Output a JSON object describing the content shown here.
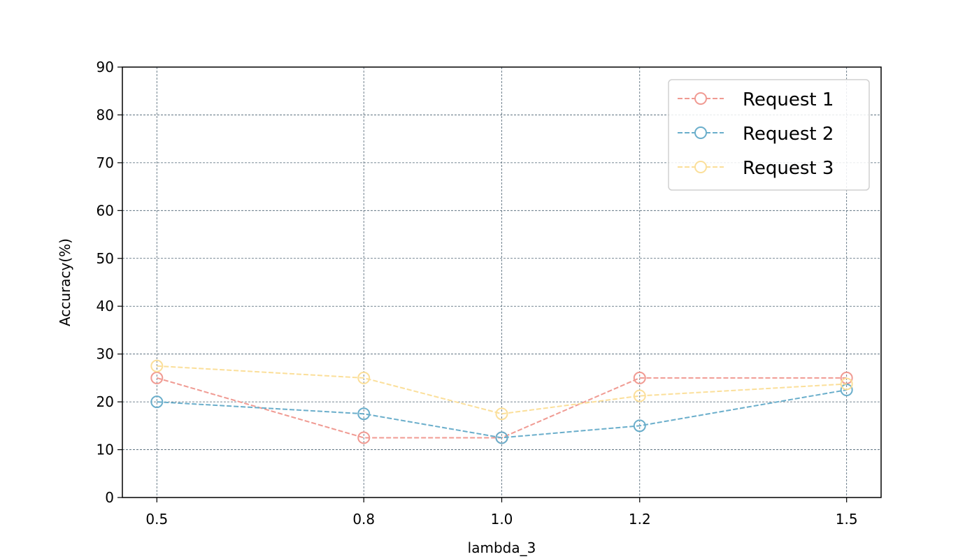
{
  "chart_data": {
    "type": "line",
    "xlabel": "lambda_3",
    "ylabel": "Accuracy(%)",
    "x": [
      0.5,
      0.8,
      1.0,
      1.2,
      1.5
    ],
    "xticks": [
      "0.5",
      "0.8",
      "1.0",
      "1.2",
      "1.5"
    ],
    "xlim": [
      0.45,
      1.55
    ],
    "ylim": [
      0,
      90
    ],
    "yticks": [
      "0",
      "10",
      "20",
      "30",
      "40",
      "50",
      "60",
      "70",
      "80",
      "90"
    ],
    "grid": true,
    "legend_position": "top-right",
    "series": [
      {
        "name": "Request 1",
        "color": "#f09a92",
        "values": [
          25,
          12.5,
          12.5,
          25,
          25
        ]
      },
      {
        "name": "Request 2",
        "color": "#6aaecb",
        "values": [
          20,
          17.5,
          12.5,
          15,
          22.5
        ]
      },
      {
        "name": "Request 3",
        "color": "#fbdf9a",
        "values": [
          27.5,
          25,
          17.5,
          21.25,
          23.75
        ]
      }
    ]
  }
}
